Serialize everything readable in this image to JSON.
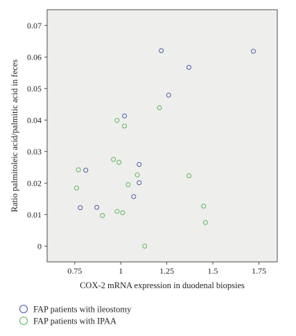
{
  "chart_data": {
    "type": "scatter",
    "title": "",
    "xlabel": "COX-2 mRNA expression in duodenal biopsies",
    "ylabel": "Ratio palmitoleic acid/palmitic acid in feces",
    "xlim": [
      0.6,
      1.85
    ],
    "ylim": [
      -0.005,
      0.075
    ],
    "x_ticks": [
      0.75,
      1,
      1.25,
      1.5,
      1.75
    ],
    "x_tick_labels": [
      "0.75",
      "1",
      "1.25",
      "1.5",
      "1.75"
    ],
    "y_ticks": [
      0,
      0.01,
      0.02,
      0.03,
      0.04,
      0.05,
      0.06,
      0.07
    ],
    "y_tick_labels": [
      "0",
      "0.01",
      "0.02",
      "0.03",
      "0.04",
      "0.05",
      "0.06",
      "0.07"
    ],
    "grid": false,
    "legend_position": "bottom-left",
    "plot_background": "#eeeeec",
    "series": [
      {
        "name": "FAP patients with ileostomy",
        "color": "#4a5aa6",
        "marker": "open-circle",
        "points": [
          {
            "x": 0.78,
            "y": 0.0122
          },
          {
            "x": 0.81,
            "y": 0.0241
          },
          {
            "x": 0.87,
            "y": 0.0123
          },
          {
            "x": 1.02,
            "y": 0.0413
          },
          {
            "x": 1.07,
            "y": 0.0157
          },
          {
            "x": 1.1,
            "y": 0.0259
          },
          {
            "x": 1.1,
            "y": 0.0201
          },
          {
            "x": 1.22,
            "y": 0.062
          },
          {
            "x": 1.26,
            "y": 0.0479
          },
          {
            "x": 1.37,
            "y": 0.0567
          },
          {
            "x": 1.72,
            "y": 0.0618
          }
        ]
      },
      {
        "name": "FAP patients with IPAA",
        "color": "#5bb85c",
        "marker": "open-circle",
        "points": [
          {
            "x": 0.76,
            "y": 0.0184
          },
          {
            "x": 0.77,
            "y": 0.0242
          },
          {
            "x": 0.9,
            "y": 0.0097
          },
          {
            "x": 0.96,
            "y": 0.0275
          },
          {
            "x": 0.98,
            "y": 0.0399
          },
          {
            "x": 0.98,
            "y": 0.011
          },
          {
            "x": 0.99,
            "y": 0.0266
          },
          {
            "x": 1.01,
            "y": 0.0106
          },
          {
            "x": 1.02,
            "y": 0.0381
          },
          {
            "x": 1.04,
            "y": 0.0195
          },
          {
            "x": 1.09,
            "y": 0.0226
          },
          {
            "x": 1.13,
            "y": 0.0
          },
          {
            "x": 1.21,
            "y": 0.0439
          },
          {
            "x": 1.37,
            "y": 0.0223
          },
          {
            "x": 1.45,
            "y": 0.0127
          },
          {
            "x": 1.46,
            "y": 0.0075
          }
        ]
      }
    ]
  }
}
